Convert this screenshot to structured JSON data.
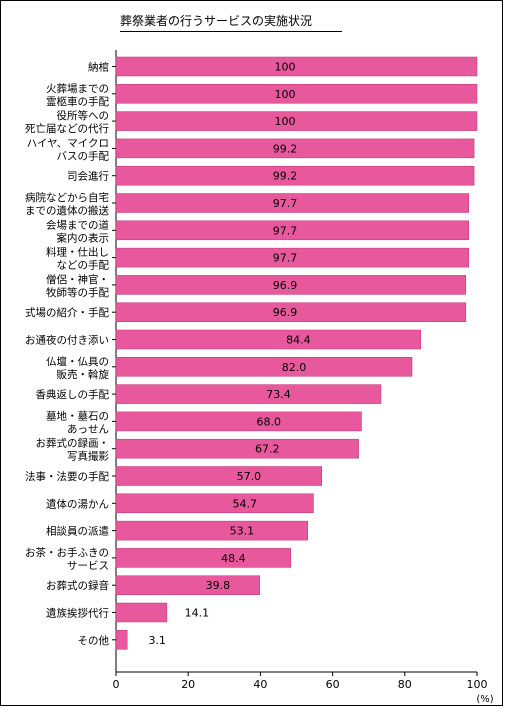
{
  "chart_data": {
    "type": "bar",
    "orientation": "horizontal",
    "title": "葬祭業者の行うサービスの実施状況",
    "unit": "(%)",
    "xlim": [
      0,
      100
    ],
    "xticks": [
      "0",
      "20",
      "40",
      "60",
      "80",
      "100"
    ],
    "bar_color": "#e8589c",
    "grid": false,
    "categories": [
      [
        "納棺"
      ],
      [
        "火葬場までの",
        "霊柩車の手配"
      ],
      [
        "役所等への",
        "死亡届などの代行"
      ],
      [
        "ハイヤ、マイクロ",
        "バスの手配"
      ],
      [
        "司会進行"
      ],
      [
        "病院などから自宅",
        "までの遺体の搬送"
      ],
      [
        "会場までの道",
        "案内の表示"
      ],
      [
        "料理・仕出し",
        "などの手配"
      ],
      [
        "僧侶・神官・",
        "牧師等の手配"
      ],
      [
        "式場の紹介・手配"
      ],
      [
        "お通夜の付き添い"
      ],
      [
        "仏壇・仏具の",
        "販売・斡旋"
      ],
      [
        "香典返しの手配"
      ],
      [
        "墓地・墓石の",
        "あっせん"
      ],
      [
        "お葬式の録画・",
        "写真撮影"
      ],
      [
        "法事・法要の手配"
      ],
      [
        "遺体の湯かん"
      ],
      [
        "相談員の派遣"
      ],
      [
        "お茶・お手ふきの",
        "サービス"
      ],
      [
        "お葬式の録音"
      ],
      [
        "遺族挨拶代行"
      ],
      [
        "その他"
      ]
    ],
    "values": [
      100,
      100,
      100,
      99.2,
      99.2,
      97.7,
      97.7,
      97.7,
      96.9,
      96.9,
      84.4,
      82.0,
      73.4,
      68.0,
      67.2,
      57.0,
      54.7,
      53.1,
      48.4,
      39.8,
      14.1,
      3.1
    ],
    "value_labels": [
      "100",
      "100",
      "100",
      "99.2",
      "99.2",
      "97.7",
      "97.7",
      "97.7",
      "96.9",
      "96.9",
      "84.4",
      "82.0",
      "73.4",
      "68.0",
      "67.2",
      "57.0",
      "54.7",
      "53.1",
      "48.4",
      "39.8",
      "14.1",
      "3.1"
    ]
  }
}
